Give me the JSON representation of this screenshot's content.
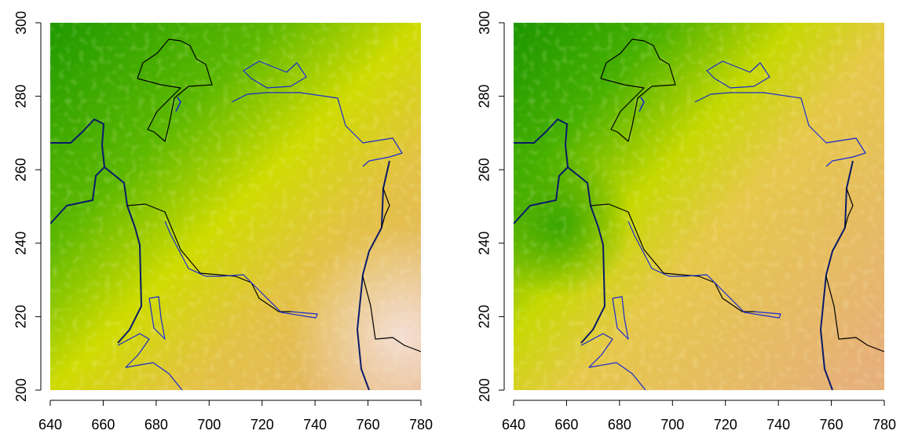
{
  "chart_data": [
    {
      "type": "raster",
      "xlim": [
        640,
        780
      ],
      "ylim": [
        200,
        300
      ],
      "xticks": [
        640,
        660,
        680,
        700,
        720,
        740,
        760,
        780
      ],
      "yticks": [
        200,
        220,
        240,
        260,
        280,
        300
      ]
    },
    {
      "type": "raster",
      "xlim": [
        640,
        780
      ],
      "ylim": [
        200,
        300
      ],
      "xticks": [
        640,
        660,
        680,
        700,
        720,
        740,
        760,
        780
      ],
      "yticks": [
        200,
        220,
        240,
        260,
        280,
        300
      ]
    }
  ]
}
